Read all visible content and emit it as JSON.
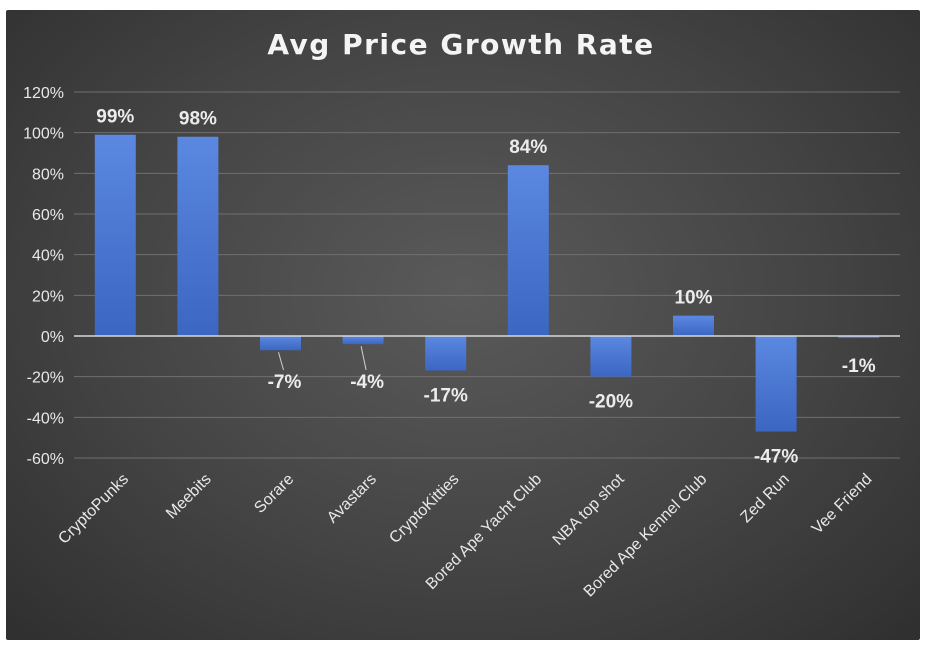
{
  "chart_data": {
    "type": "bar",
    "title": "Avg Price Growth Rate",
    "xlabel": "",
    "ylabel": "",
    "ylim": [
      -60,
      120
    ],
    "ytick_step": 20,
    "ytick_labels": [
      "120%",
      "100%",
      "80%",
      "60%",
      "40%",
      "20%",
      "0%",
      "-20%",
      "-40%",
      "-60%"
    ],
    "grid": true,
    "legend": "none",
    "bar_color": "#4a78d4",
    "categories": [
      "CryptoPunks",
      "Meebits",
      "Sorare",
      "Avastars",
      "CryptoKitties",
      "Bored Ape Yacht Club",
      "NBA top shot",
      "Bored Ape Kennel Club",
      "Zed Run",
      "Vee Friend"
    ],
    "values": [
      99,
      98,
      -7,
      -4,
      -17,
      84,
      -20,
      10,
      -47,
      -1
    ],
    "data_labels": [
      "99%",
      "98%",
      "-7%",
      "-4%",
      "-17%",
      "84%",
      "-20%",
      "10%",
      "-47%",
      "-1%"
    ]
  }
}
